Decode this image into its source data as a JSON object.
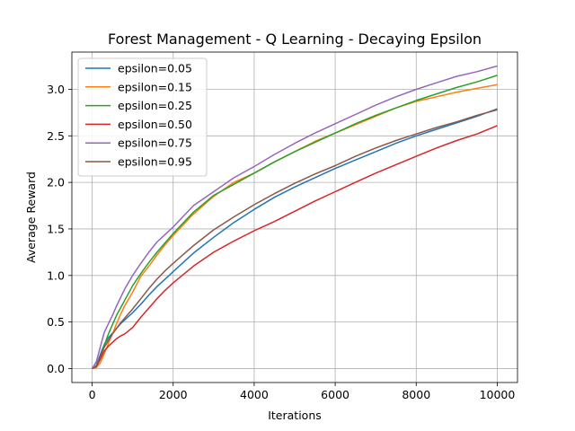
{
  "chart_data": {
    "type": "line",
    "title": "Forest Management - Q Learning - Decaying Epsilon",
    "xlabel": "Iterations",
    "ylabel": "Average Reward",
    "xlim": [
      -500,
      10500
    ],
    "ylim": [
      -0.15,
      3.4
    ],
    "xticks": [
      0,
      2000,
      4000,
      6000,
      8000,
      10000
    ],
    "yticks": [
      0.0,
      0.5,
      1.0,
      1.5,
      2.0,
      2.5,
      3.0
    ],
    "xtick_labels": [
      "0",
      "2000",
      "4000",
      "6000",
      "8000",
      "10000"
    ],
    "ytick_labels": [
      "0.0",
      "0.5",
      "1.0",
      "1.5",
      "2.0",
      "2.5",
      "3.0"
    ],
    "grid": true,
    "legend_position": "top-left",
    "x": [
      0,
      100,
      200,
      300,
      400,
      500,
      600,
      700,
      800,
      1000,
      1200,
      1400,
      1600,
      1800,
      2000,
      2500,
      3000,
      3500,
      4000,
      4500,
      5000,
      5500,
      6000,
      6500,
      7000,
      7500,
      8000,
      8500,
      9000,
      9500,
      10000
    ],
    "series": [
      {
        "name": "epsilon=0.05",
        "color": "#1f77b4",
        "values": [
          0.0,
          0.03,
          0.15,
          0.26,
          0.33,
          0.38,
          0.43,
          0.48,
          0.52,
          0.6,
          0.69,
          0.79,
          0.88,
          0.96,
          1.04,
          1.24,
          1.41,
          1.57,
          1.71,
          1.84,
          1.95,
          2.05,
          2.15,
          2.24,
          2.33,
          2.42,
          2.5,
          2.57,
          2.64,
          2.71,
          2.79
        ]
      },
      {
        "name": "epsilon=0.15",
        "color": "#ff7f0e",
        "values": [
          0.0,
          0.01,
          0.06,
          0.16,
          0.27,
          0.37,
          0.48,
          0.58,
          0.67,
          0.82,
          0.99,
          1.1,
          1.22,
          1.33,
          1.43,
          1.66,
          1.85,
          2.0,
          2.1,
          2.22,
          2.33,
          2.44,
          2.53,
          2.62,
          2.71,
          2.8,
          2.87,
          2.92,
          2.97,
          3.01,
          3.05
        ]
      },
      {
        "name": "epsilon=0.25",
        "color": "#2ca02c",
        "values": [
          0.0,
          0.02,
          0.12,
          0.25,
          0.37,
          0.47,
          0.57,
          0.65,
          0.73,
          0.89,
          1.02,
          1.14,
          1.25,
          1.35,
          1.45,
          1.68,
          1.86,
          1.98,
          2.1,
          2.22,
          2.33,
          2.43,
          2.53,
          2.63,
          2.72,
          2.8,
          2.88,
          2.95,
          3.02,
          3.08,
          3.15
        ]
      },
      {
        "name": "epsilon=0.50",
        "color": "#d62728",
        "values": [
          0.0,
          0.02,
          0.1,
          0.19,
          0.24,
          0.28,
          0.32,
          0.35,
          0.37,
          0.44,
          0.55,
          0.65,
          0.75,
          0.84,
          0.92,
          1.1,
          1.25,
          1.37,
          1.48,
          1.58,
          1.69,
          1.8,
          1.9,
          2.0,
          2.1,
          2.19,
          2.28,
          2.37,
          2.45,
          2.52,
          2.61
        ]
      },
      {
        "name": "epsilon=0.75",
        "color": "#9467bd",
        "values": [
          0.0,
          0.07,
          0.23,
          0.39,
          0.48,
          0.57,
          0.67,
          0.76,
          0.85,
          1.0,
          1.13,
          1.25,
          1.36,
          1.44,
          1.52,
          1.75,
          1.9,
          2.05,
          2.17,
          2.3,
          2.42,
          2.53,
          2.63,
          2.73,
          2.83,
          2.92,
          3.0,
          3.07,
          3.14,
          3.19,
          3.25
        ]
      },
      {
        "name": "epsilon=0.95",
        "color": "#8c564b",
        "values": [
          0.0,
          0.02,
          0.13,
          0.23,
          0.3,
          0.37,
          0.43,
          0.49,
          0.54,
          0.64,
          0.75,
          0.86,
          0.96,
          1.05,
          1.13,
          1.32,
          1.49,
          1.63,
          1.76,
          1.88,
          1.99,
          2.09,
          2.18,
          2.28,
          2.37,
          2.45,
          2.52,
          2.59,
          2.65,
          2.72,
          2.78
        ]
      }
    ]
  }
}
